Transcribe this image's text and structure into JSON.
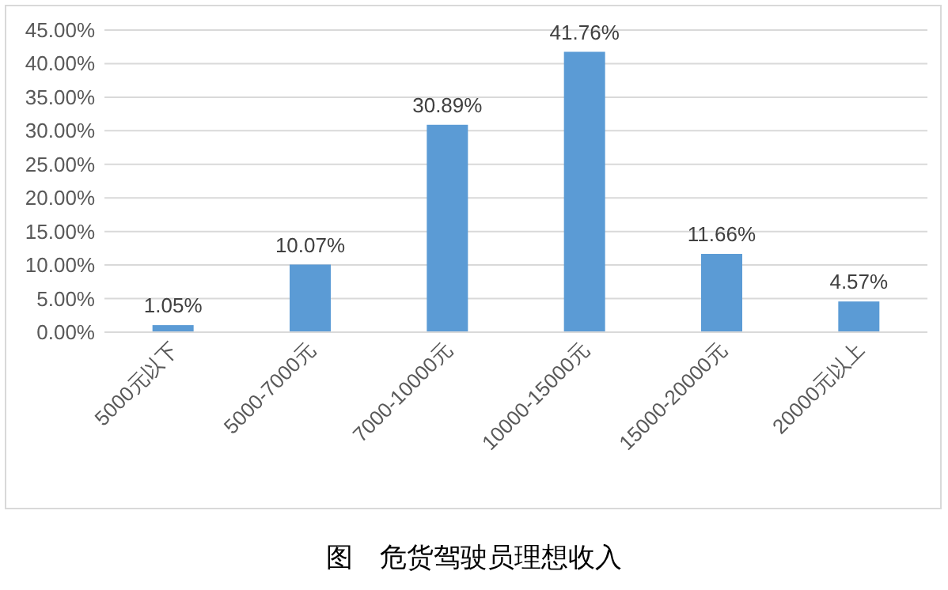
{
  "chart_data": {
    "type": "bar",
    "title": "图　危货驾驶员理想收入",
    "categories": [
      "5000元以下",
      "5000-7000元",
      "7000-10000元",
      "10000-15000元",
      "15000-20000元",
      "20000元以上"
    ],
    "values": [
      1.05,
      10.07,
      30.89,
      41.76,
      11.66,
      4.57
    ],
    "value_labels": [
      "1.05%",
      "10.07%",
      "30.89%",
      "41.76%",
      "11.66%",
      "4.57%"
    ],
    "color": "#5b9bd5",
    "ylim": [
      0,
      45
    ],
    "yticks": [
      {
        "value": 0,
        "label": "0.00%"
      },
      {
        "value": 5,
        "label": "5.00%"
      },
      {
        "value": 10,
        "label": "10.00%"
      },
      {
        "value": 15,
        "label": "15.00%"
      },
      {
        "value": 20,
        "label": "20.00%"
      },
      {
        "value": 25,
        "label": "25.00%"
      },
      {
        "value": 30,
        "label": "30.00%"
      },
      {
        "value": 35,
        "label": "35.00%"
      },
      {
        "value": 40,
        "label": "40.00%"
      },
      {
        "value": 45,
        "label": "45.00%"
      }
    ],
    "grid": "y"
  }
}
